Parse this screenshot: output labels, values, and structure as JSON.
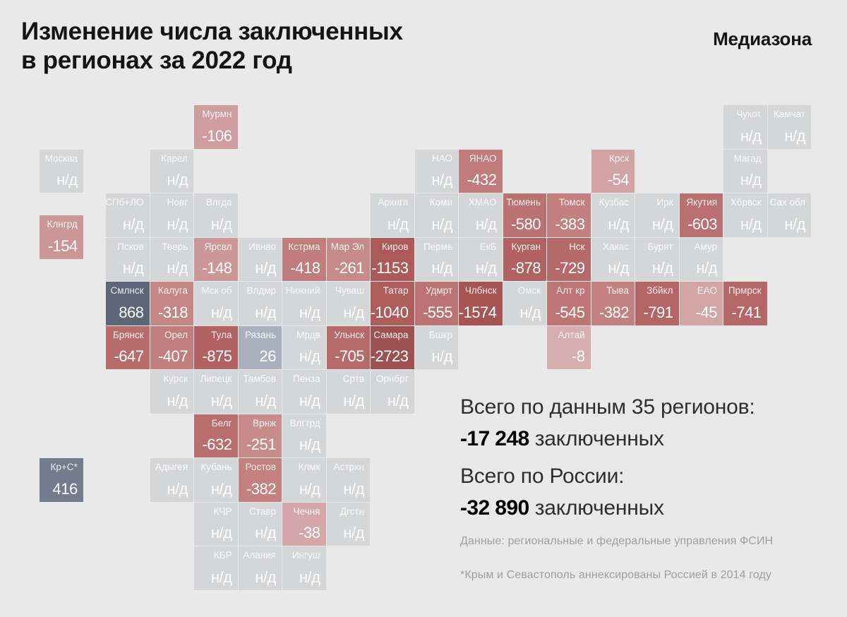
{
  "header": {
    "title_line1": "Изменение числа заключенных",
    "title_line2": "в регионах за 2022 год",
    "logo": "Медиазона"
  },
  "summary": {
    "regions_label": "Всего по данным 35 регионов:",
    "regions_value": "-17 248",
    "regions_suffix": " заключенных",
    "russia_label": "Всего по России:",
    "russia_value": "-32 890",
    "russia_suffix": " заключенных"
  },
  "footnotes": {
    "source": "Данные: региональные и федеральные управления ФСИН",
    "crimea": "*Крым и Севастополь аннексированы Россией в 2014 году"
  },
  "colors": {
    "background": "#e9e9e9",
    "no_data_tile": "#d5d6d8",
    "tile_label_text": "rgba(255,255,255,0.88)",
    "tile_value_text": "#ffffff",
    "negative_darkest": "#9e5151",
    "negative_lightest": "#d7aeae",
    "positive_darkest": "#5d6678",
    "positive_lightest": "#a9b1bf"
  },
  "chart_data": {
    "type": "heatmap",
    "title": "Изменение числа заключенных в регионах за 2022 год",
    "source": "региональные и федеральные управления ФСИН",
    "no_data_label": "н/д",
    "totals": {
      "reported_regions": 35,
      "reported_change": -17248,
      "russia_change": -32890
    },
    "regions": [
      {
        "name": "Мурмн",
        "col": 3.5,
        "row": 0,
        "value": -106,
        "display": "-106",
        "color": "#cf9d9d"
      },
      {
        "name": "Чукот",
        "col": 15.5,
        "row": 0,
        "value": null,
        "display": "н/д",
        "color": "#d5d6d8"
      },
      {
        "name": "Камчат",
        "col": 16.5,
        "row": 0,
        "value": null,
        "display": "н/д",
        "color": "#d5d6d8"
      },
      {
        "name": "Москва",
        "col": 0,
        "row": 1,
        "value": null,
        "display": "н/д",
        "color": "#d5d6d8"
      },
      {
        "name": "Карел",
        "col": 2.5,
        "row": 1,
        "value": null,
        "display": "н/д",
        "color": "#d5d6d8"
      },
      {
        "name": "НАО",
        "col": 8.5,
        "row": 1,
        "value": null,
        "display": "н/д",
        "color": "#d5d6d8"
      },
      {
        "name": "ЯНАО",
        "col": 9.5,
        "row": 1,
        "value": -432,
        "display": "-432",
        "color": "#c07b7b"
      },
      {
        "name": "Крск",
        "col": 12.5,
        "row": 1,
        "value": -54,
        "display": "-54",
        "color": "#d2a3a3"
      },
      {
        "name": "Магад",
        "col": 15.5,
        "row": 1,
        "value": null,
        "display": "н/д",
        "color": "#d5d6d8"
      },
      {
        "name": "СПб+ЛО",
        "col": 1.5,
        "row": 2,
        "value": null,
        "display": "н/д",
        "color": "#d5d6d8"
      },
      {
        "name": "Новг",
        "col": 2.5,
        "row": 2,
        "value": null,
        "display": "н/д",
        "color": "#d5d6d8"
      },
      {
        "name": "Влгда",
        "col": 3.5,
        "row": 2,
        "value": null,
        "display": "н/д",
        "color": "#d5d6d8"
      },
      {
        "name": "Архнгл",
        "col": 7.5,
        "row": 2,
        "value": null,
        "display": "н/д",
        "color": "#d5d6d8"
      },
      {
        "name": "Коми",
        "col": 8.5,
        "row": 2,
        "value": null,
        "display": "н/д",
        "color": "#d5d6d8"
      },
      {
        "name": "ХМАО",
        "col": 9.5,
        "row": 2,
        "value": null,
        "display": "н/д",
        "color": "#d5d6d8"
      },
      {
        "name": "Тюмень",
        "col": 10.5,
        "row": 2,
        "value": -580,
        "display": "-580",
        "color": "#bb7272"
      },
      {
        "name": "Томск",
        "col": 11.5,
        "row": 2,
        "value": -383,
        "display": "-383",
        "color": "#c38080"
      },
      {
        "name": "Кузбас",
        "col": 12.5,
        "row": 2,
        "value": null,
        "display": "н/д",
        "color": "#d5d6d8"
      },
      {
        "name": "Ирк",
        "col": 13.5,
        "row": 2,
        "value": null,
        "display": "н/д",
        "color": "#d5d6d8"
      },
      {
        "name": "Якутия",
        "col": 14.5,
        "row": 2,
        "value": -603,
        "display": "-603",
        "color": "#ba7070"
      },
      {
        "name": "Хбрвск",
        "col": 15.5,
        "row": 2,
        "value": null,
        "display": "н/д",
        "color": "#d5d6d8"
      },
      {
        "name": "Сах обл",
        "col": 16.5,
        "row": 2,
        "value": null,
        "display": "н/д",
        "color": "#d5d6d8"
      },
      {
        "name": "Клнгрд",
        "col": 0,
        "row": 2.5,
        "value": -154,
        "display": "-154",
        "color": "#cb9696"
      },
      {
        "name": "Псков",
        "col": 1.5,
        "row": 3,
        "value": null,
        "display": "н/д",
        "color": "#d5d6d8"
      },
      {
        "name": "Тверь",
        "col": 2.5,
        "row": 3,
        "value": null,
        "display": "н/д",
        "color": "#d5d6d8"
      },
      {
        "name": "Ярсвл",
        "col": 3.5,
        "row": 3,
        "value": -148,
        "display": "-148",
        "color": "#cc9797"
      },
      {
        "name": "Ивнво",
        "col": 4.5,
        "row": 3,
        "value": null,
        "display": "н/д",
        "color": "#d5d6d8"
      },
      {
        "name": "Кстрма",
        "col": 5.5,
        "row": 3,
        "value": -418,
        "display": "-418",
        "color": "#c17d7d"
      },
      {
        "name": "Мар Эл",
        "col": 6.5,
        "row": 3,
        "value": -261,
        "display": "-261",
        "color": "#c78a8a"
      },
      {
        "name": "Киров",
        "col": 7.5,
        "row": 3,
        "value": -1153,
        "display": "-1153",
        "color": "#ab5959"
      },
      {
        "name": "Пермь",
        "col": 8.5,
        "row": 3,
        "value": null,
        "display": "н/д",
        "color": "#d5d6d8"
      },
      {
        "name": "ЕкБ",
        "col": 9.5,
        "row": 3,
        "value": null,
        "display": "н/д",
        "color": "#d5d6d8"
      },
      {
        "name": "Курган",
        "col": 10.5,
        "row": 3,
        "value": -878,
        "display": "-878",
        "color": "#b16161"
      },
      {
        "name": "Нск",
        "col": 11.5,
        "row": 3,
        "value": -729,
        "display": "-729",
        "color": "#b66969"
      },
      {
        "name": "Хакас",
        "col": 12.5,
        "row": 3,
        "value": null,
        "display": "н/д",
        "color": "#d5d6d8"
      },
      {
        "name": "Бурят",
        "col": 13.5,
        "row": 3,
        "value": null,
        "display": "н/д",
        "color": "#d5d6d8"
      },
      {
        "name": "Амур",
        "col": 14.5,
        "row": 3,
        "value": null,
        "display": "н/д",
        "color": "#d5d6d8"
      },
      {
        "name": "Смлнск",
        "col": 1.5,
        "row": 4,
        "value": 868,
        "display": "868",
        "color": "#5d6678"
      },
      {
        "name": "Калуга",
        "col": 2.5,
        "row": 4,
        "value": -318,
        "display": "-318",
        "color": "#c58686"
      },
      {
        "name": "Мск об",
        "col": 3.5,
        "row": 4,
        "value": null,
        "display": "н/д",
        "color": "#d5d6d8"
      },
      {
        "name": "Влдмр",
        "col": 4.5,
        "row": 4,
        "value": null,
        "display": "н/д",
        "color": "#d5d6d8"
      },
      {
        "name": "Нижний",
        "col": 5.5,
        "row": 4,
        "value": null,
        "display": "н/д",
        "color": "#d5d6d8"
      },
      {
        "name": "Чуваш",
        "col": 6.5,
        "row": 4,
        "value": null,
        "display": "н/д",
        "color": "#d5d6d8"
      },
      {
        "name": "Татар",
        "col": 7.5,
        "row": 4,
        "value": -1040,
        "display": "-1040",
        "color": "#ae5c5c"
      },
      {
        "name": "Удмрт",
        "col": 8.5,
        "row": 4,
        "value": -555,
        "display": "-555",
        "color": "#bc7373"
      },
      {
        "name": "Члбнск",
        "col": 9.5,
        "row": 4,
        "value": -1574,
        "display": "-1574",
        "color": "#a65454"
      },
      {
        "name": "Омск",
        "col": 10.5,
        "row": 4,
        "value": null,
        "display": "н/д",
        "color": "#d5d6d8"
      },
      {
        "name": "Алт кр",
        "col": 11.5,
        "row": 4,
        "value": -545,
        "display": "-545",
        "color": "#bd7575"
      },
      {
        "name": "Тыва",
        "col": 12.5,
        "row": 4,
        "value": -382,
        "display": "-382",
        "color": "#c38181"
      },
      {
        "name": "Збйкл",
        "col": 13.5,
        "row": 4,
        "value": -791,
        "display": "-791",
        "color": "#b46565"
      },
      {
        "name": "ЕАО",
        "col": 14.5,
        "row": 4,
        "value": -45,
        "display": "-45",
        "color": "#d3a6a6"
      },
      {
        "name": "Прмрск",
        "col": 15.5,
        "row": 4,
        "value": -741,
        "display": "-741",
        "color": "#b56767"
      },
      {
        "name": "Брянск",
        "col": 1.5,
        "row": 5,
        "value": -647,
        "display": "-647",
        "color": "#b86d6d"
      },
      {
        "name": "Орел",
        "col": 2.5,
        "row": 5,
        "value": -407,
        "display": "-407",
        "color": "#c27e7e"
      },
      {
        "name": "Тула",
        "col": 3.5,
        "row": 5,
        "value": -875,
        "display": "-875",
        "color": "#b26262"
      },
      {
        "name": "Рязань",
        "col": 4.5,
        "row": 5,
        "value": 26,
        "display": "26",
        "color": "#a9b1bf"
      },
      {
        "name": "Мрдв",
        "col": 5.5,
        "row": 5,
        "value": null,
        "display": "н/д",
        "color": "#d5d6d8"
      },
      {
        "name": "Ульнск",
        "col": 6.5,
        "row": 5,
        "value": -705,
        "display": "-705",
        "color": "#b76a6a"
      },
      {
        "name": "Самара",
        "col": 7.5,
        "row": 5,
        "value": -2723,
        "display": "-2723",
        "color": "#9e5151"
      },
      {
        "name": "Бшкр",
        "col": 8.5,
        "row": 5,
        "value": null,
        "display": "н/д",
        "color": "#d5d6d8"
      },
      {
        "name": "Алтай",
        "col": 11.5,
        "row": 5,
        "value": -8,
        "display": "-8",
        "color": "#d7aeae"
      },
      {
        "name": "Курск",
        "col": 2.5,
        "row": 6,
        "value": null,
        "display": "н/д",
        "color": "#d5d6d8"
      },
      {
        "name": "Липецк",
        "col": 3.5,
        "row": 6,
        "value": null,
        "display": "н/д",
        "color": "#d5d6d8"
      },
      {
        "name": "Тамбов",
        "col": 4.5,
        "row": 6,
        "value": null,
        "display": "н/д",
        "color": "#d5d6d8"
      },
      {
        "name": "Пенза",
        "col": 5.5,
        "row": 6,
        "value": null,
        "display": "н/д",
        "color": "#d5d6d8"
      },
      {
        "name": "Сртв",
        "col": 6.5,
        "row": 6,
        "value": null,
        "display": "н/д",
        "color": "#d5d6d8"
      },
      {
        "name": "Орнбрг",
        "col": 7.5,
        "row": 6,
        "value": null,
        "display": "н/д",
        "color": "#d5d6d8"
      },
      {
        "name": "Белг",
        "col": 3.5,
        "row": 7,
        "value": -632,
        "display": "-632",
        "color": "#b96e6e"
      },
      {
        "name": "Врнж",
        "col": 4.5,
        "row": 7,
        "value": -251,
        "display": "-251",
        "color": "#c88b8b"
      },
      {
        "name": "Влгтрд",
        "col": 5.5,
        "row": 7,
        "value": null,
        "display": "н/д",
        "color": "#d5d6d8"
      },
      {
        "name": "Кр+С*",
        "col": 0,
        "row": 8,
        "value": 416,
        "display": "416",
        "color": "#737b8c"
      },
      {
        "name": "Адыгея",
        "col": 2.5,
        "row": 8,
        "value": null,
        "display": "н/д",
        "color": "#d5d6d8"
      },
      {
        "name": "Кубань",
        "col": 3.5,
        "row": 8,
        "value": null,
        "display": "н/д",
        "color": "#d5d6d8"
      },
      {
        "name": "Ростов",
        "col": 4.5,
        "row": 8,
        "value": -382,
        "display": "-382",
        "color": "#c38181"
      },
      {
        "name": "Клмк",
        "col": 5.5,
        "row": 8,
        "value": null,
        "display": "н/д",
        "color": "#d5d6d8"
      },
      {
        "name": "Астрхн",
        "col": 6.5,
        "row": 8,
        "value": null,
        "display": "н/д",
        "color": "#d5d6d8"
      },
      {
        "name": "КЧР",
        "col": 3.5,
        "row": 9,
        "value": null,
        "display": "н/д",
        "color": "#d5d6d8"
      },
      {
        "name": "Ставр",
        "col": 4.5,
        "row": 9,
        "value": null,
        "display": "н/д",
        "color": "#d5d6d8"
      },
      {
        "name": "Чечня",
        "col": 5.5,
        "row": 9,
        "value": -38,
        "display": "-38",
        "color": "#d4a8a8"
      },
      {
        "name": "Дгстн",
        "col": 6.5,
        "row": 9,
        "value": null,
        "display": "н/д",
        "color": "#d5d6d8"
      },
      {
        "name": "КБР",
        "col": 3.5,
        "row": 10,
        "value": null,
        "display": "н/д",
        "color": "#d5d6d8"
      },
      {
        "name": "Алания",
        "col": 4.5,
        "row": 10,
        "value": null,
        "display": "н/д",
        "color": "#d5d6d8"
      },
      {
        "name": "Ингуш",
        "col": 5.5,
        "row": 10,
        "value": null,
        "display": "н/д",
        "color": "#d5d6d8"
      }
    ]
  }
}
